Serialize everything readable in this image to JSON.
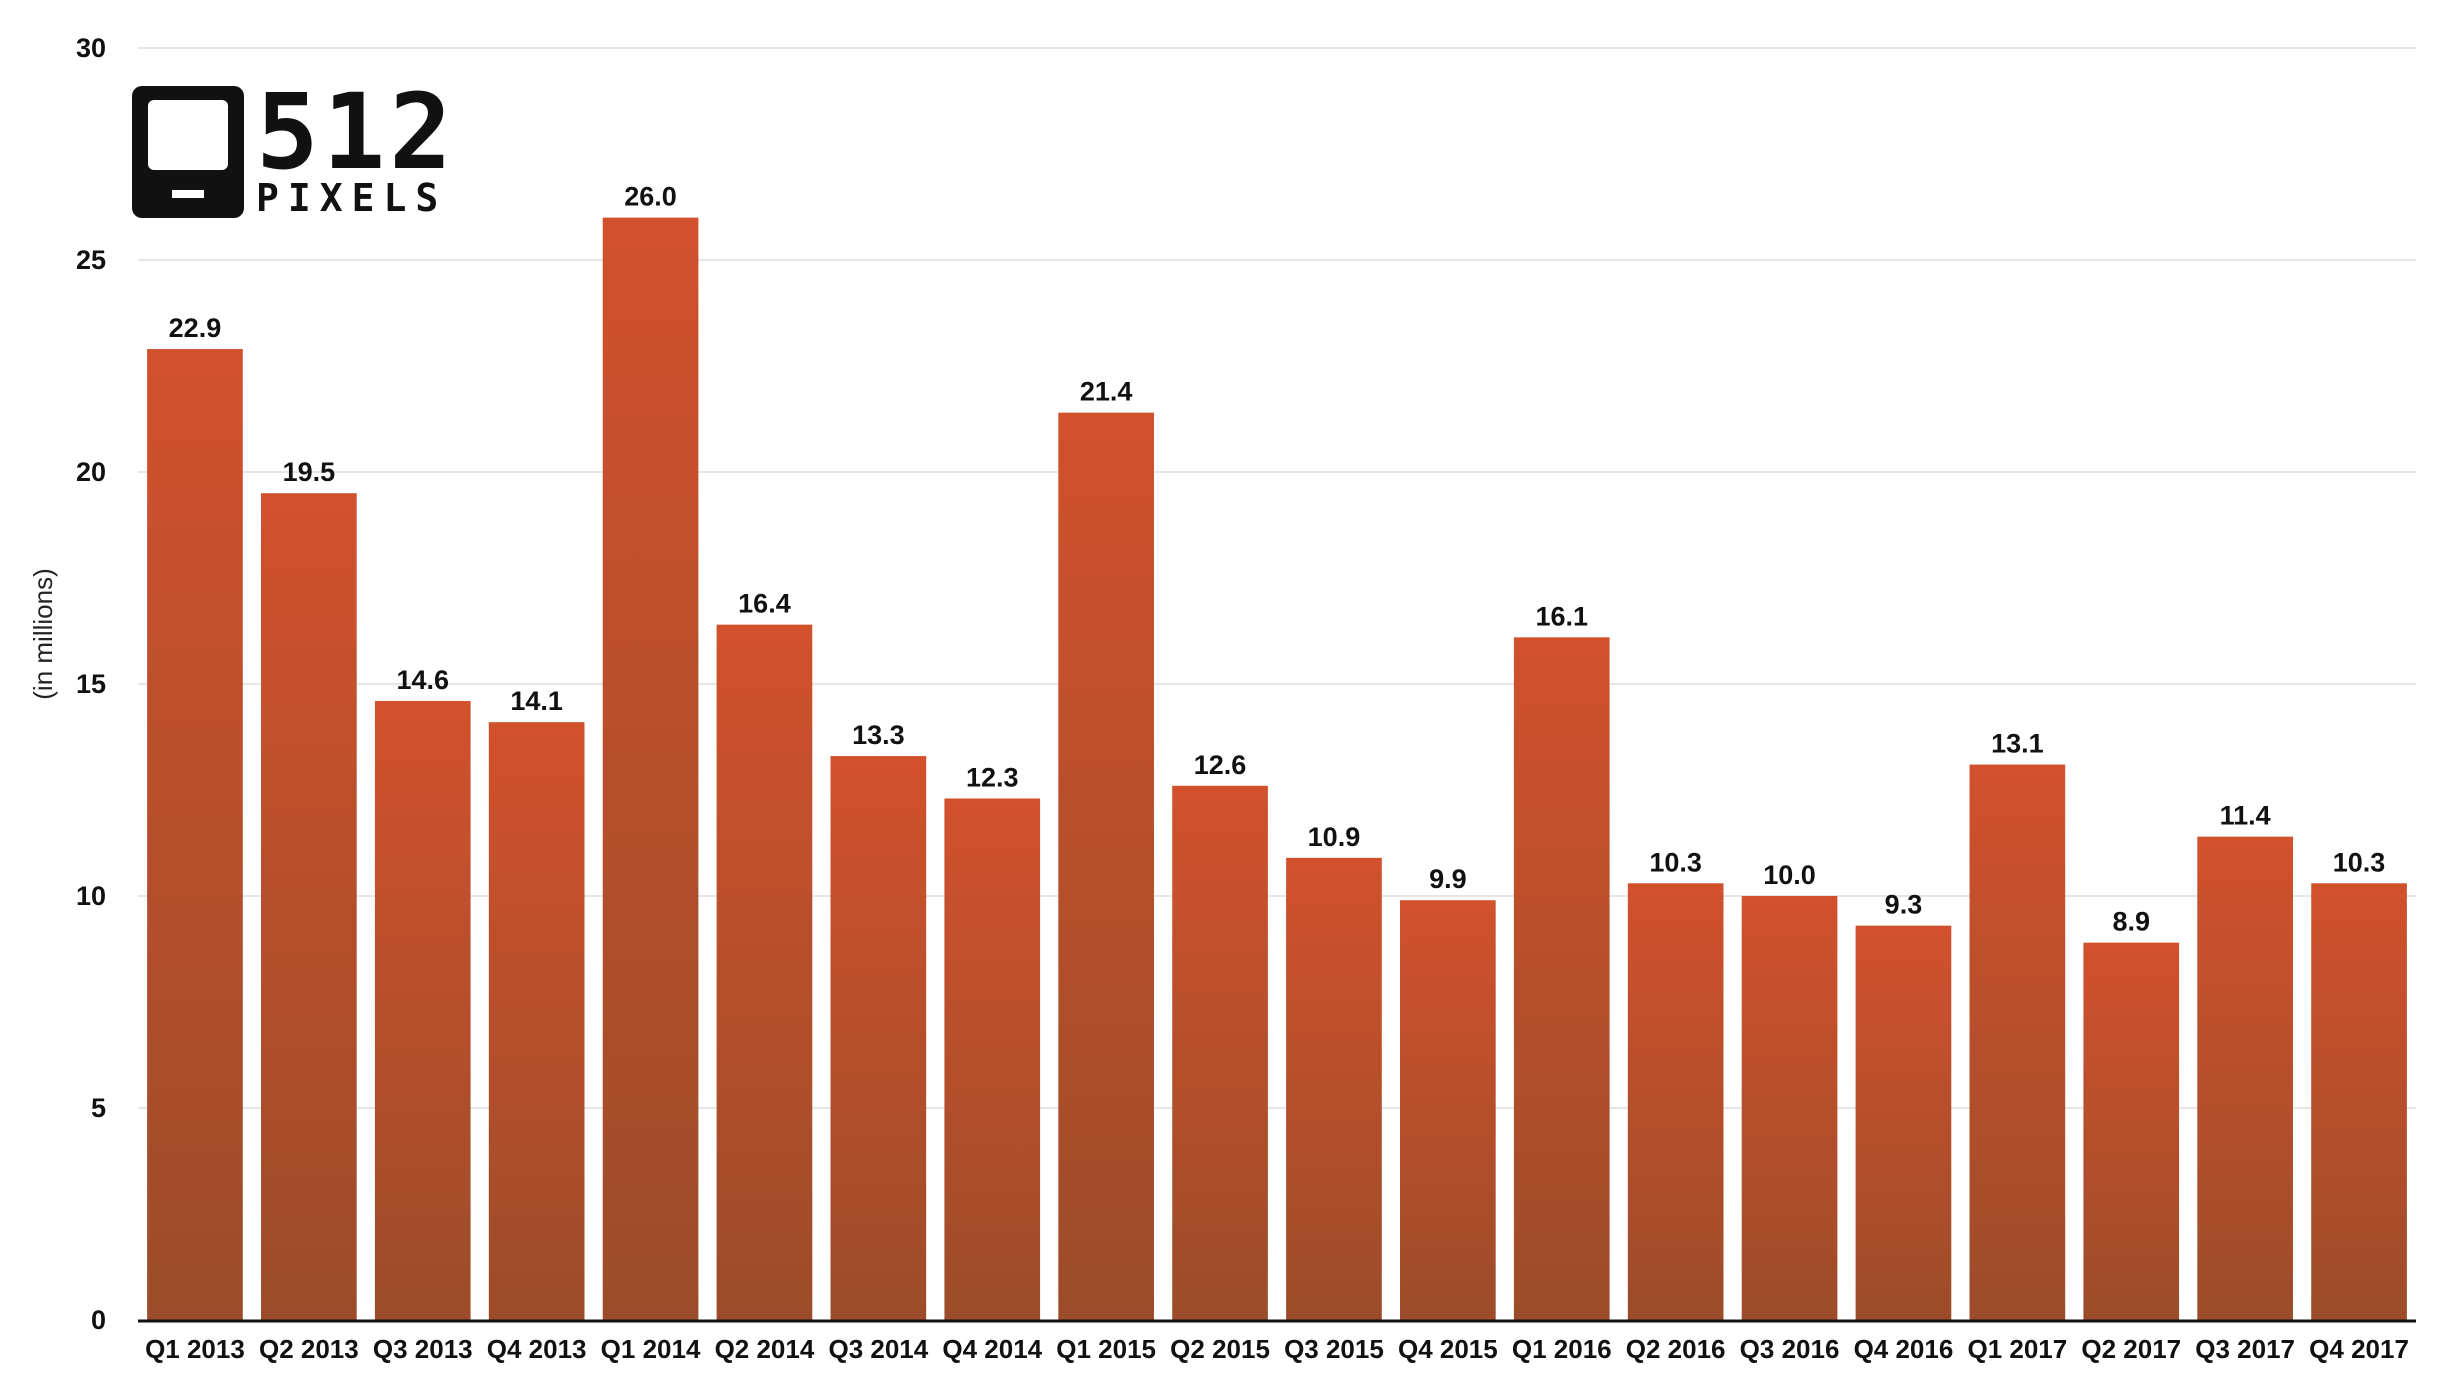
{
  "chart_data": {
    "type": "bar",
    "categories": [
      "Q1 2013",
      "Q2 2013",
      "Q3 2013",
      "Q4 2013",
      "Q1 2014",
      "Q2 2014",
      "Q3 2014",
      "Q4 2014",
      "Q1 2015",
      "Q2 2015",
      "Q3 2015",
      "Q4 2015",
      "Q1 2016",
      "Q2 2016",
      "Q3 2016",
      "Q4 2016",
      "Q1 2017",
      "Q2 2017",
      "Q3 2017",
      "Q4 2017"
    ],
    "values": [
      22.9,
      19.5,
      14.6,
      14.1,
      26.0,
      16.4,
      13.3,
      12.3,
      21.4,
      12.6,
      10.9,
      9.9,
      16.1,
      10.3,
      10.0,
      9.3,
      13.1,
      8.9,
      11.4,
      10.3
    ],
    "value_labels": [
      "22.9",
      "19.5",
      "14.6",
      "14.1",
      "26.0",
      "16.4",
      "13.3",
      "12.3",
      "21.4",
      "12.6",
      "10.9",
      "9.9",
      "16.1",
      "10.3",
      "10.0",
      "9.3",
      "13.1",
      "8.9",
      "11.4",
      "10.3"
    ],
    "ylabel": "(in millions)",
    "ylim": [
      0,
      30
    ],
    "yticks": [
      0,
      5,
      10,
      15,
      20,
      25,
      30
    ],
    "grid": true,
    "bar_color_top": "#d1512c",
    "bar_color_bottom": "#9c4c2a"
  },
  "logo": {
    "number": "512",
    "word": "PIXELS"
  }
}
